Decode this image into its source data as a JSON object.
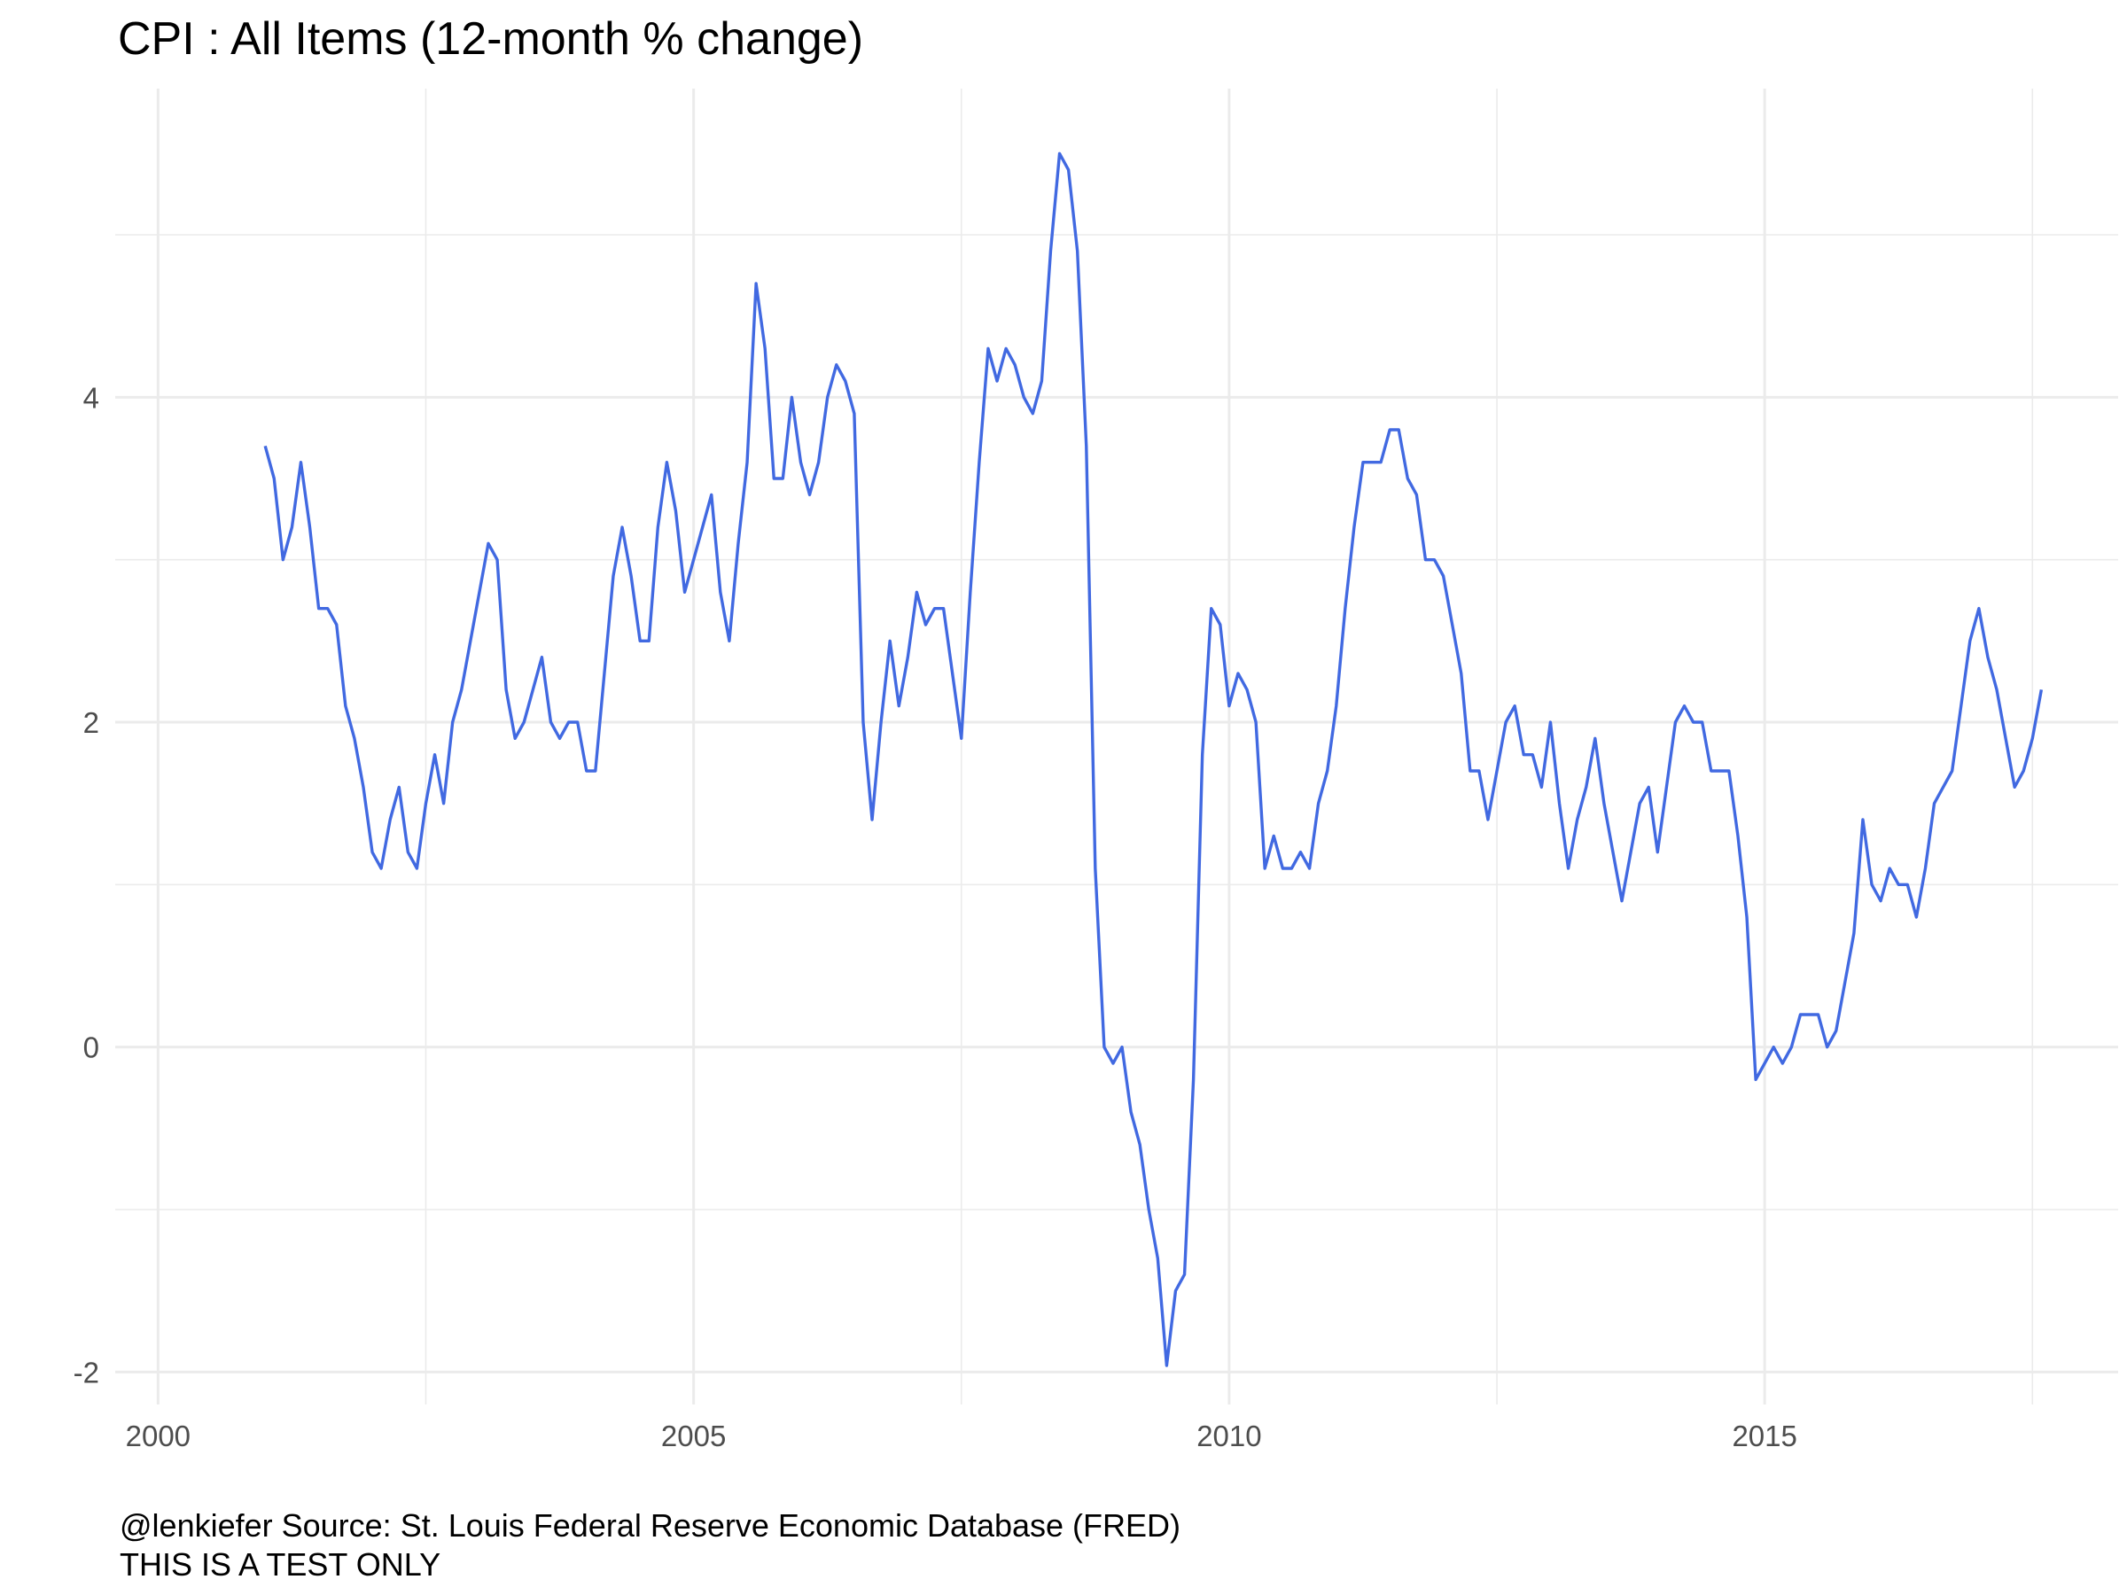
{
  "chart_data": {
    "type": "line",
    "title": "CPI : All Items (12-month % change)",
    "xlabel": "",
    "ylabel": "",
    "xlim": [
      1999.6,
      2018.3
    ],
    "ylim": [
      -2.2,
      5.9
    ],
    "x_ticks": [
      2000,
      2005,
      2010,
      2015
    ],
    "x_tick_labels": [
      "2000",
      "2005",
      "2010",
      "2015"
    ],
    "y_ticks": [
      -2,
      0,
      2,
      4
    ],
    "y_tick_labels": [
      "-2",
      "0",
      "2",
      "4"
    ],
    "x_minor": [
      2002.5,
      2007.5,
      2012.5,
      2017.5
    ],
    "y_minor": [
      -1,
      1,
      3,
      5
    ],
    "grid": true,
    "line_color": "#4169e1",
    "grid_color": "#ebebeb",
    "series": [
      {
        "x_start": 2001.0,
        "step": 0.083333,
        "values": [
          3.7,
          3.5,
          3.0,
          3.2,
          3.6,
          3.2,
          2.7,
          2.7,
          2.6,
          2.1,
          1.9,
          1.6,
          1.2,
          1.1,
          1.4,
          1.6,
          1.2,
          1.1,
          1.5,
          1.8,
          1.5,
          2.0,
          2.2,
          2.5,
          2.8,
          3.1,
          3.0,
          2.2,
          1.9,
          2.0,
          2.2,
          2.4,
          2.0,
          1.9,
          2.0,
          2.0,
          1.7,
          1.7,
          2.3,
          2.9,
          3.2,
          2.9,
          2.5,
          2.5,
          3.2,
          3.6,
          3.3,
          2.8,
          3.0,
          3.2,
          3.4,
          2.8,
          2.5,
          3.1,
          3.6,
          4.7,
          4.3,
          3.5,
          3.5,
          4.0,
          3.6,
          3.4,
          3.6,
          4.0,
          4.2,
          4.1,
          3.9,
          2.0,
          1.4,
          2.0,
          2.5,
          2.1,
          2.4,
          2.8,
          2.6,
          2.7,
          2.7,
          2.3,
          1.9,
          2.8,
          3.6,
          4.3,
          4.1,
          4.3,
          4.2,
          4.0,
          3.9,
          4.1,
          4.9,
          5.5,
          5.4,
          4.9,
          3.7,
          1.1,
          0.0,
          -0.1,
          0.0,
          -0.4,
          -0.6,
          -1.0,
          -1.3,
          -1.96,
          -1.5,
          -1.4,
          -0.2,
          1.8,
          2.7,
          2.6,
          2.1,
          2.3,
          2.2,
          2.0,
          1.1,
          1.3,
          1.1,
          1.1,
          1.2,
          1.1,
          1.5,
          1.7,
          2.1,
          2.7,
          3.2,
          3.6,
          3.6,
          3.6,
          3.8,
          3.8,
          3.5,
          3.4,
          3.0,
          3.0,
          2.9,
          2.6,
          2.3,
          1.7,
          1.7,
          1.4,
          1.7,
          2.0,
          2.1,
          1.8,
          1.8,
          1.6,
          2.0,
          1.5,
          1.1,
          1.4,
          1.6,
          1.9,
          1.5,
          1.2,
          0.9,
          1.2,
          1.5,
          1.6,
          1.2,
          1.6,
          2.0,
          2.1,
          2.0,
          2.0,
          1.7,
          1.7,
          1.7,
          1.3,
          0.8,
          -0.2,
          -0.1,
          0.0,
          -0.1,
          0.0,
          0.2,
          0.2,
          0.2,
          0.0,
          0.1,
          0.4,
          0.7,
          1.4,
          1.0,
          0.9,
          1.1,
          1.0,
          1.0,
          0.8,
          1.1,
          1.5,
          1.6,
          1.7,
          2.1,
          2.5,
          2.7,
          2.4,
          2.2,
          1.9,
          1.6,
          1.7,
          1.9,
          2.2
        ]
      }
    ]
  },
  "caption": {
    "line1": "@lenkiefer Source: St. Louis Federal Reserve Economic Database (FRED)",
    "line2": "THIS IS A TEST ONLY"
  }
}
